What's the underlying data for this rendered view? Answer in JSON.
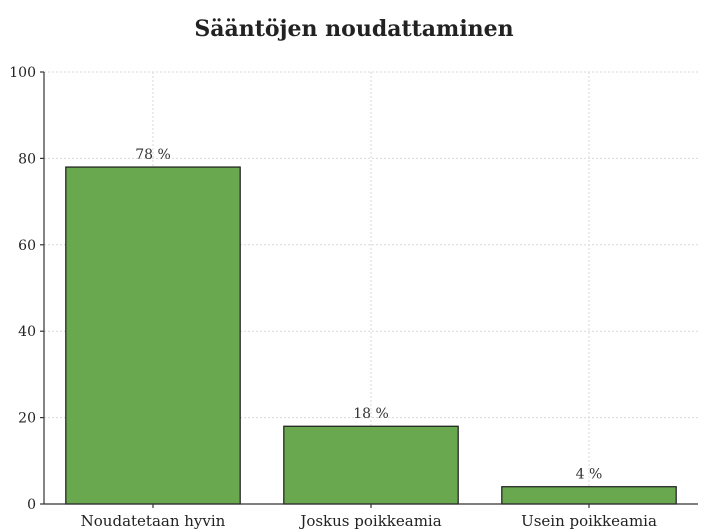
{
  "chart_data": {
    "type": "bar",
    "title": "Sääntöjen noudattaminen",
    "categories": [
      "Noudatetaan hyvin",
      "Joskus poikkeamia",
      "Usein poikkeamia"
    ],
    "values": [
      78,
      18,
      4
    ],
    "data_labels": [
      "78 %",
      "18 %",
      "4 %"
    ],
    "xlabel": "",
    "ylabel": "",
    "ylim": [
      0,
      100
    ],
    "yticks": [
      0,
      20,
      40,
      60,
      80,
      100
    ],
    "grid": true,
    "bar_color": "#6aa84f"
  }
}
